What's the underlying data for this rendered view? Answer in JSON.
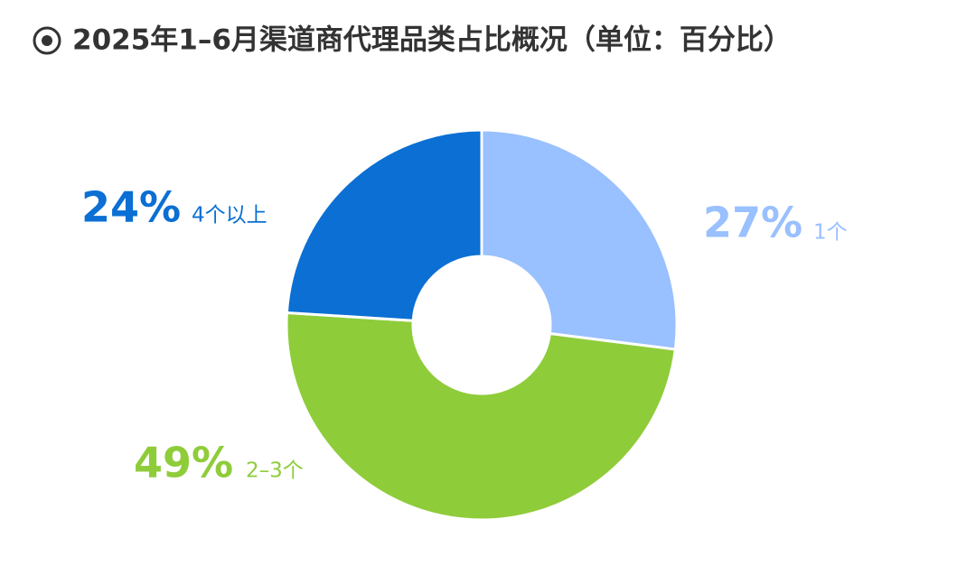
{
  "chart_data": {
    "type": "donut",
    "title": "2025年1–6月渠道商代理品类占比概况（单位：百分比）",
    "categories": [
      "1个",
      "2–3个",
      "4个以上"
    ],
    "values": [
      27,
      49,
      24
    ],
    "value_labels": [
      "27%",
      "49%",
      "24%"
    ],
    "colors": [
      "#99c0ff",
      "#8fcc3a",
      "#0b6fd4"
    ]
  }
}
